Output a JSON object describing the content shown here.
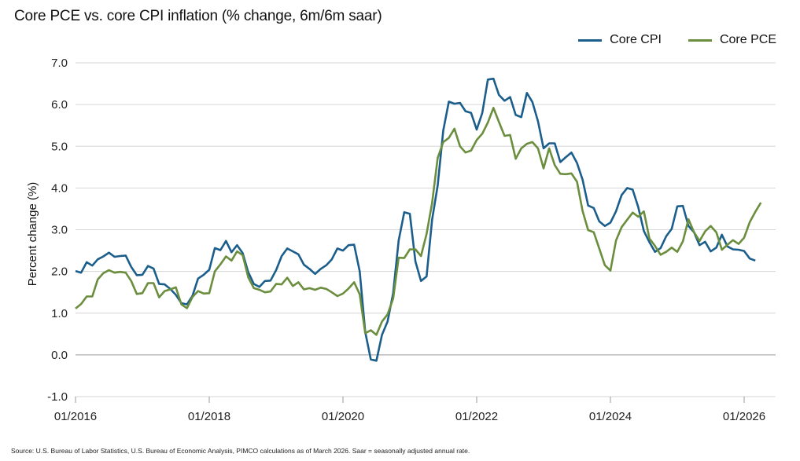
{
  "title": "Core PCE vs. core CPI inflation (% change, 6m/6m saar)",
  "source": "Source: U.S. Bureau of Labor Statistics, U.S. Bureau of Economic Analysis, PIMCO calculations as of March 2026. Saar = seasonally adjusted annual rate.",
  "chart_data": {
    "type": "line",
    "title": "Core PCE vs. core CPI inflation (% change, 6m/6m saar)",
    "xlabel": "",
    "ylabel": "Percent change (%)",
    "ylim": [
      -1.0,
      7.0
    ],
    "yticks": [
      "7.0",
      "6.0",
      "5.0",
      "4.0",
      "3.0",
      "2.0",
      "1.0",
      "0.0",
      "-1.0"
    ],
    "xticks": [
      "01/2016",
      "01/2018",
      "01/2020",
      "01/2022",
      "01/2024",
      "01/2026"
    ],
    "grid": "horizontal",
    "legend_position": "top-right",
    "colors": {
      "Core CPI": "#1b5e8c",
      "Core PCE": "#6b8e3e"
    },
    "series": [
      {
        "name": "Core CPI",
        "start": "2016-01",
        "values": [
          2.01,
          1.97,
          2.22,
          2.14,
          2.29,
          2.36,
          2.45,
          2.35,
          2.37,
          2.38,
          2.11,
          1.91,
          1.92,
          2.13,
          2.07,
          1.7,
          1.69,
          1.58,
          1.44,
          1.24,
          1.21,
          1.42,
          1.83,
          1.92,
          2.04,
          2.56,
          2.51,
          2.73,
          2.46,
          2.63,
          2.44,
          1.98,
          1.7,
          1.63,
          1.77,
          1.78,
          2.03,
          2.37,
          2.55,
          2.48,
          2.41,
          2.16,
          2.06,
          1.94,
          2.06,
          2.15,
          2.29,
          2.55,
          2.5,
          2.63,
          2.64,
          2.0,
          0.55,
          -0.11,
          -0.14,
          0.48,
          0.8,
          1.48,
          2.74,
          3.42,
          3.38,
          2.24,
          1.77,
          1.88,
          3.24,
          4.06,
          5.38,
          6.07,
          6.02,
          6.04,
          5.84,
          5.8,
          5.4,
          5.8,
          6.6,
          6.62,
          6.23,
          6.09,
          6.18,
          5.75,
          5.7,
          6.28,
          6.06,
          5.6,
          4.95,
          5.07,
          5.07,
          4.62,
          4.74,
          4.85,
          4.6,
          4.2,
          3.58,
          3.52,
          3.2,
          3.09,
          3.17,
          3.44,
          3.83,
          4.0,
          3.96,
          3.54,
          2.97,
          2.7,
          2.47,
          2.56,
          2.84,
          3.02,
          3.56,
          3.57,
          3.09,
          2.94,
          2.63,
          2.71,
          2.48,
          2.57,
          2.88,
          2.6,
          2.53,
          2.52,
          2.49,
          2.31,
          2.26
        ]
      },
      {
        "name": "Core PCE",
        "start": "2016-01",
        "values": [
          1.11,
          1.22,
          1.4,
          1.4,
          1.81,
          1.96,
          2.03,
          1.97,
          1.99,
          1.97,
          1.77,
          1.46,
          1.48,
          1.72,
          1.72,
          1.38,
          1.53,
          1.57,
          1.62,
          1.21,
          1.12,
          1.39,
          1.53,
          1.47,
          1.48,
          2.0,
          2.17,
          2.36,
          2.26,
          2.48,
          2.39,
          1.86,
          1.6,
          1.56,
          1.5,
          1.52,
          1.7,
          1.69,
          1.85,
          1.65,
          1.74,
          1.57,
          1.6,
          1.56,
          1.61,
          1.58,
          1.5,
          1.41,
          1.47,
          1.59,
          1.74,
          1.45,
          0.52,
          0.59,
          0.48,
          0.8,
          0.97,
          1.35,
          2.33,
          2.32,
          2.53,
          2.53,
          2.37,
          2.9,
          3.64,
          4.72,
          5.1,
          5.2,
          5.42,
          5.0,
          4.85,
          4.9,
          5.15,
          5.3,
          5.57,
          5.92,
          5.58,
          5.25,
          5.27,
          4.7,
          4.95,
          5.06,
          5.1,
          4.95,
          4.47,
          4.95,
          4.55,
          4.34,
          4.33,
          4.35,
          4.15,
          3.45,
          2.99,
          2.94,
          2.55,
          2.15,
          2.02,
          2.74,
          3.06,
          3.24,
          3.41,
          3.31,
          3.44,
          2.79,
          2.61,
          2.4,
          2.47,
          2.57,
          2.47,
          2.72,
          3.25,
          2.94,
          2.73,
          2.96,
          3.09,
          2.94,
          2.52,
          2.64,
          2.75,
          2.66,
          2.81,
          3.18,
          3.43,
          3.65
        ]
      }
    ]
  }
}
